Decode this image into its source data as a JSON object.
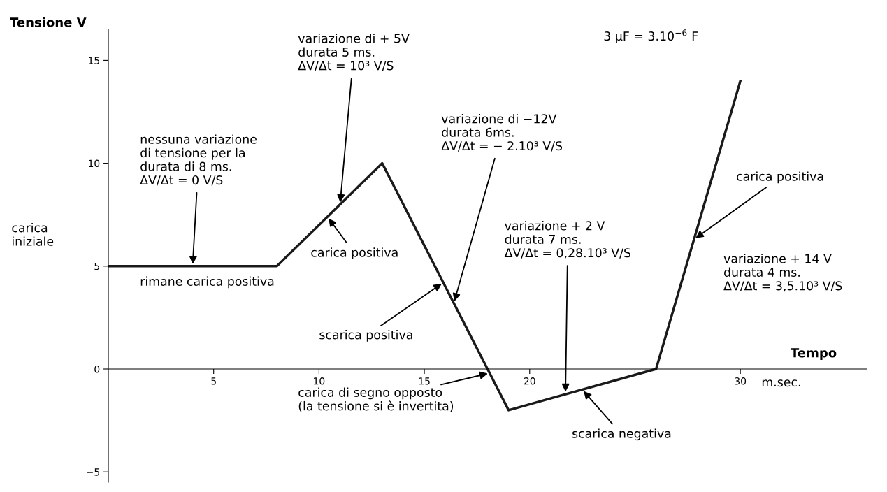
{
  "chart_data": {
    "type": "line",
    "ylabel": "Tensione V",
    "xlabel": "Tempo",
    "x": [
      0,
      8,
      13,
      19,
      26,
      30
    ],
    "series": [
      {
        "color": "#1a1a1a",
        "values": [
          5,
          5,
          10,
          -2,
          0,
          14
        ]
      }
    ],
    "xlim": [
      0,
      36
    ],
    "ylim": [
      -5.5,
      16.5
    ],
    "xticks": [
      5,
      10,
      15,
      20,
      {
        "value": 25,
        "label": null
      },
      30
    ],
    "yticks": [
      {
        "value": -5,
        "label": "−5"
      },
      0,
      5,
      10,
      15
    ],
    "grid": false,
    "legend": false,
    "marker": "none",
    "line_style": "solid",
    "annotations": [
      {
        "text": "nessuna variazione\ndi tensione per la\ndurata di 8 ms.\nΔV/Δt = 0 V/S",
        "x": 4,
        "y": 5
      },
      {
        "text": "variazione di + 5V\ndurata 5 ms.\nΔV/Δt = 10³ V/S",
        "x": 11,
        "y": 8
      },
      {
        "text": "carica positiva",
        "x": 10.4,
        "y": 7.4
      },
      {
        "text": "variazione di −12V\ndurata 6ms.\nΔV/Δt = − 2.10³ V/S",
        "x": 16.4,
        "y": 3.2
      },
      {
        "text": "scarica positiva",
        "x": 15.9,
        "y": 4.2
      },
      {
        "text": "carica di segno opposto\n(la tensione si è invertita)",
        "x": 18.1,
        "y": -0.2
      },
      {
        "text": "variazione + 2 V\ndurata 7 ms.\nΔV/Δt = 0,28.10³ V/S",
        "x": 21.7,
        "y": -1.2
      },
      {
        "text": "scarica negativa",
        "x": 22.5,
        "y": -1.0
      },
      {
        "text": "carica positiva",
        "x": 27.8,
        "y": 6.3
      },
      "variazione + 14 V\ndurata 4 ms.\nΔV/Δt = 3,5.10³ V/S",
      "3 μF = 3.10$^{−6}$ F",
      "carica\niniziale",
      "rimane carica positiva",
      "m.sec."
    ]
  }
}
